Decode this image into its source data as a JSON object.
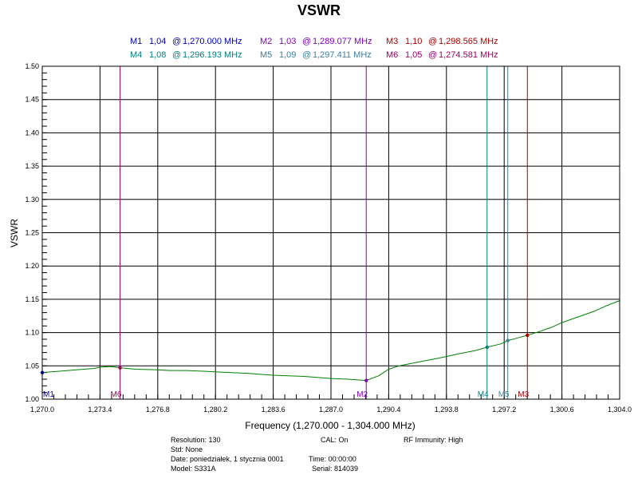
{
  "chart_data": {
    "type": "line",
    "title": "VSWR",
    "xlabel": "Frequency (1,270.000 - 1,304.000 MHz)",
    "ylabel": "VSWR",
    "xlim": [
      1270.0,
      1304.0
    ],
    "ylim": [
      1.0,
      1.5
    ],
    "x_ticks": [
      1270.0,
      1273.4,
      1276.8,
      1280.2,
      1283.6,
      1287.0,
      1290.4,
      1293.8,
      1297.2,
      1300.6,
      1304.0
    ],
    "x_tick_labels": [
      "1,270.0",
      "1,273.4",
      "1,276.8",
      "1,280.2",
      "1,283.6",
      "1,287.0",
      "1,290.4",
      "1,293.8",
      "1,297.2",
      "1,300.6",
      "1,304.0"
    ],
    "y_ticks": [
      1.0,
      1.05,
      1.1,
      1.15,
      1.2,
      1.25,
      1.3,
      1.35,
      1.4,
      1.45,
      1.5
    ],
    "y_tick_labels": [
      "1.00",
      "1.05",
      "1.10",
      "1.15",
      "1.20",
      "1.25",
      "1.30",
      "1.35",
      "1.40",
      "1.45",
      "1.50"
    ],
    "grid": true,
    "series": [
      {
        "color": "#008000",
        "x": [
          1270.0,
          1271.0,
          1272.0,
          1273.0,
          1273.4,
          1274.0,
          1274.6,
          1275.5,
          1276.8,
          1277.5,
          1278.5,
          1279.5,
          1280.2,
          1281.0,
          1282.0,
          1283.0,
          1283.6,
          1284.5,
          1285.5,
          1286.5,
          1287.0,
          1288.0,
          1289.08,
          1289.8,
          1290.4,
          1291.0,
          1292.0,
          1293.0,
          1293.8,
          1294.5,
          1295.5,
          1296.19,
          1297.0,
          1297.41,
          1298.0,
          1298.57,
          1299.2,
          1300.0,
          1300.6,
          1301.5,
          1302.5,
          1303.2,
          1304.0
        ],
        "y": [
          1.04,
          1.042,
          1.044,
          1.046,
          1.048,
          1.049,
          1.047,
          1.045,
          1.044,
          1.043,
          1.043,
          1.042,
          1.041,
          1.04,
          1.039,
          1.037,
          1.036,
          1.035,
          1.034,
          1.032,
          1.031,
          1.03,
          1.028,
          1.035,
          1.045,
          1.05,
          1.055,
          1.06,
          1.064,
          1.068,
          1.073,
          1.078,
          1.083,
          1.088,
          1.092,
          1.096,
          1.101,
          1.108,
          1.115,
          1.123,
          1.132,
          1.14,
          1.148
        ]
      }
    ],
    "markers": [
      {
        "id": "M1",
        "vswr": "1,04",
        "freq": "1,270.000 MHz",
        "x": 1270.0,
        "y": 1.04,
        "color": "#0000c0",
        "legend_row": 0,
        "legend_col": 0
      },
      {
        "id": "M2",
        "vswr": "1,03",
        "freq": "1,289.077 MHz",
        "x": 1289.077,
        "y": 1.028,
        "color": "#8000c0",
        "legend_row": 0,
        "legend_col": 1
      },
      {
        "id": "M3",
        "vswr": "1,10",
        "freq": "1,298.565 MHz",
        "x": 1298.565,
        "y": 1.096,
        "color": "#b00000",
        "legend_row": 0,
        "legend_col": 2
      },
      {
        "id": "M4",
        "vswr": "1,08",
        "freq": "1,296.193 MHz",
        "x": 1296.193,
        "y": 1.078,
        "color": "#008080",
        "legend_row": 1,
        "legend_col": 0
      },
      {
        "id": "M5",
        "vswr": "1,09",
        "freq": "1,297.411 MHz",
        "x": 1297.411,
        "y": 1.088,
        "color": "#4080a0",
        "legend_row": 1,
        "legend_col": 1
      },
      {
        "id": "M6",
        "vswr": "1,05",
        "freq": "1,274.581 MHz",
        "x": 1274.581,
        "y": 1.047,
        "color": "#a00060",
        "legend_row": 1,
        "legend_col": 2
      }
    ]
  },
  "info": {
    "resolution": "Resolution: 130",
    "cal": "CAL: On",
    "rf_immunity": "RF Immunity: High",
    "std": "Std: None",
    "date": "Date: poniedziałek, 1 stycznia 0001",
    "time": "Time: 00:00:00",
    "model": "Model: S331A",
    "serial": "Serial: 814039"
  }
}
